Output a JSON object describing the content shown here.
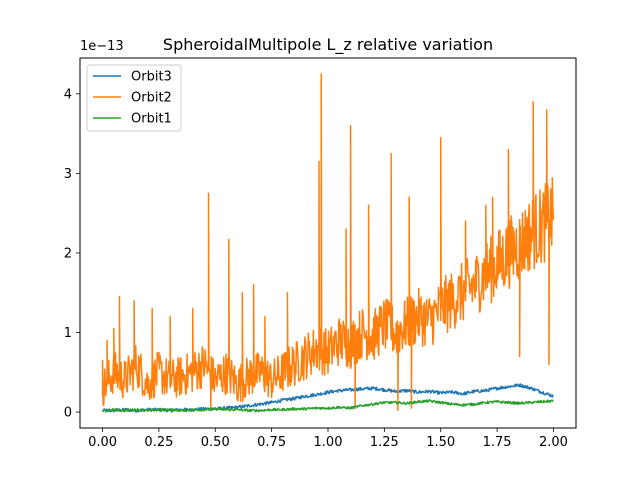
{
  "chart_data": {
    "type": "line",
    "title": "SpheroidalMultipole L_z relative variation",
    "xlabel": "",
    "ylabel": "",
    "y_offset_label": "1e−13",
    "xlim": [
      -0.1,
      2.1
    ],
    "ylim": [
      -0.2,
      4.45
    ],
    "x_ticks": [
      0.0,
      0.25,
      0.5,
      0.75,
      1.0,
      1.25,
      1.5,
      1.75,
      2.0
    ],
    "x_tick_labels": [
      "0.00",
      "0.25",
      "0.50",
      "0.75",
      "1.00",
      "1.25",
      "1.50",
      "1.75",
      "2.00"
    ],
    "y_ticks": [
      0,
      1,
      2,
      3,
      4
    ],
    "y_tick_labels": [
      "0",
      "1",
      "2",
      "3",
      "4"
    ],
    "grid": false,
    "legend_position": "top-left",
    "series": [
      {
        "name": "Orbit3",
        "color": "#1f77b4",
        "x": [
          0.0,
          0.05,
          0.1,
          0.15,
          0.2,
          0.25,
          0.3,
          0.35,
          0.4,
          0.45,
          0.5,
          0.55,
          0.6,
          0.65,
          0.7,
          0.75,
          0.8,
          0.85,
          0.9,
          0.95,
          1.0,
          1.05,
          1.1,
          1.15,
          1.2,
          1.25,
          1.3,
          1.35,
          1.4,
          1.45,
          1.5,
          1.55,
          1.6,
          1.65,
          1.7,
          1.75,
          1.8,
          1.85,
          1.9,
          1.95,
          2.0
        ],
        "values": [
          0.02,
          0.02,
          0.03,
          0.02,
          0.03,
          0.03,
          0.02,
          0.03,
          0.03,
          0.04,
          0.04,
          0.05,
          0.06,
          0.08,
          0.1,
          0.12,
          0.15,
          0.17,
          0.2,
          0.22,
          0.25,
          0.27,
          0.28,
          0.29,
          0.3,
          0.28,
          0.26,
          0.27,
          0.25,
          0.26,
          0.24,
          0.25,
          0.23,
          0.26,
          0.27,
          0.3,
          0.32,
          0.34,
          0.3,
          0.25,
          0.2
        ]
      },
      {
        "name": "Orbit2",
        "color": "#ff7f0e",
        "x": [
          0.0,
          0.05,
          0.1,
          0.15,
          0.2,
          0.25,
          0.3,
          0.35,
          0.4,
          0.45,
          0.5,
          0.55,
          0.6,
          0.65,
          0.7,
          0.75,
          0.8,
          0.85,
          0.9,
          0.95,
          1.0,
          1.05,
          1.1,
          1.15,
          1.2,
          1.25,
          1.3,
          1.35,
          1.4,
          1.45,
          1.5,
          1.55,
          1.6,
          1.65,
          1.7,
          1.75,
          1.8,
          1.85,
          1.9,
          1.95,
          2.0
        ],
        "values": [
          0.3,
          0.5,
          0.4,
          0.6,
          0.35,
          0.5,
          0.4,
          0.45,
          0.5,
          0.6,
          0.4,
          0.5,
          0.35,
          0.45,
          0.5,
          0.4,
          0.5,
          0.6,
          0.7,
          0.8,
          0.75,
          0.9,
          0.85,
          1.0,
          0.95,
          1.1,
          1.0,
          1.1,
          1.2,
          1.15,
          1.3,
          1.4,
          1.5,
          1.6,
          1.75,
          1.85,
          2.0,
          2.1,
          2.25,
          2.35,
          2.45
        ],
        "spikes": [
          {
            "x": 0.0,
            "y": 0.65
          },
          {
            "x": 0.02,
            "y": 0.9
          },
          {
            "x": 0.05,
            "y": 1.05
          },
          {
            "x": 0.075,
            "y": 1.45
          },
          {
            "x": 0.14,
            "y": 1.4
          },
          {
            "x": 0.22,
            "y": 1.3
          },
          {
            "x": 0.3,
            "y": 1.2
          },
          {
            "x": 0.4,
            "y": 1.3
          },
          {
            "x": 0.47,
            "y": 2.75
          },
          {
            "x": 0.56,
            "y": 2.17
          },
          {
            "x": 0.62,
            "y": 1.5
          },
          {
            "x": 0.67,
            "y": 1.6
          },
          {
            "x": 0.72,
            "y": 1.2
          },
          {
            "x": 0.82,
            "y": 1.5
          },
          {
            "x": 0.96,
            "y": 3.15
          },
          {
            "x": 0.97,
            "y": 4.25
          },
          {
            "x": 1.08,
            "y": 2.3
          },
          {
            "x": 1.1,
            "y": 3.6
          },
          {
            "x": 1.18,
            "y": 2.6
          },
          {
            "x": 1.28,
            "y": 3.25
          },
          {
            "x": 1.36,
            "y": 2.7
          },
          {
            "x": 1.5,
            "y": 3.45
          },
          {
            "x": 1.61,
            "y": 2.4
          },
          {
            "x": 1.7,
            "y": 2.6
          },
          {
            "x": 1.73,
            "y": 2.7
          },
          {
            "x": 1.8,
            "y": 3.3
          },
          {
            "x": 1.91,
            "y": 3.9
          },
          {
            "x": 1.97,
            "y": 3.8
          },
          {
            "x": 0.48,
            "y": 0.05
          },
          {
            "x": 1.12,
            "y": 0.05
          },
          {
            "x": 1.31,
            "y": 0.02
          },
          {
            "x": 1.37,
            "y": 0.05
          },
          {
            "x": 1.85,
            "y": 0.7
          },
          {
            "x": 1.98,
            "y": 0.6
          }
        ]
      },
      {
        "name": "Orbit1",
        "color": "#2ca02c",
        "x": [
          0.0,
          0.05,
          0.1,
          0.15,
          0.2,
          0.25,
          0.3,
          0.35,
          0.4,
          0.45,
          0.5,
          0.55,
          0.6,
          0.65,
          0.7,
          0.75,
          0.8,
          0.85,
          0.9,
          0.95,
          1.0,
          1.05,
          1.1,
          1.15,
          1.2,
          1.25,
          1.3,
          1.35,
          1.4,
          1.45,
          1.5,
          1.55,
          1.6,
          1.65,
          1.7,
          1.75,
          1.8,
          1.85,
          1.9,
          1.95,
          2.0
        ],
        "values": [
          0.01,
          0.03,
          0.02,
          0.03,
          0.02,
          0.03,
          0.03,
          0.02,
          0.03,
          0.03,
          0.04,
          0.03,
          0.03,
          0.02,
          0.02,
          0.03,
          0.03,
          0.04,
          0.04,
          0.05,
          0.05,
          0.06,
          0.05,
          0.08,
          0.1,
          0.12,
          0.12,
          0.11,
          0.13,
          0.14,
          0.12,
          0.1,
          0.09,
          0.1,
          0.12,
          0.13,
          0.12,
          0.11,
          0.12,
          0.13,
          0.14
        ]
      }
    ]
  }
}
